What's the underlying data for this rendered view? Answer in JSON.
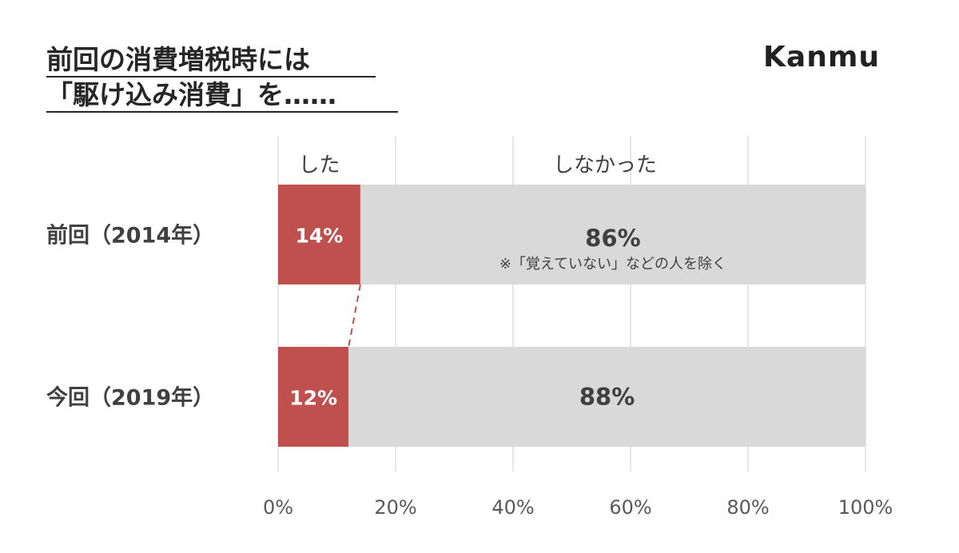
{
  "title": {
    "line1": "前回の消費増税時には",
    "line2": "「駆け込み消費」を……"
  },
  "brand": "Kanmu",
  "colors": {
    "did": "#c0504d",
    "did_not": "#d9d9d9",
    "grid": "#e6e6e6",
    "text": "#404040",
    "connector": "#c0504d"
  },
  "chart_data": {
    "type": "bar",
    "orientation": "horizontal",
    "stacked": true,
    "percent_stacked": true,
    "categories": [
      "前回（2014年）",
      "今回（2019年）"
    ],
    "series": [
      {
        "name": "した",
        "values": [
          14,
          12
        ],
        "labels": [
          "14%",
          "12%"
        ]
      },
      {
        "name": "しなかった",
        "values": [
          86,
          88
        ],
        "labels": [
          "86%",
          "88%"
        ]
      }
    ],
    "xlim": [
      0,
      100
    ],
    "x_ticks": [
      "0%",
      "20%",
      "40%",
      "60%",
      "80%",
      "100%"
    ],
    "grid": true,
    "legend_placement": "top",
    "annotation": "※「覚えていない」などの人を除く"
  }
}
